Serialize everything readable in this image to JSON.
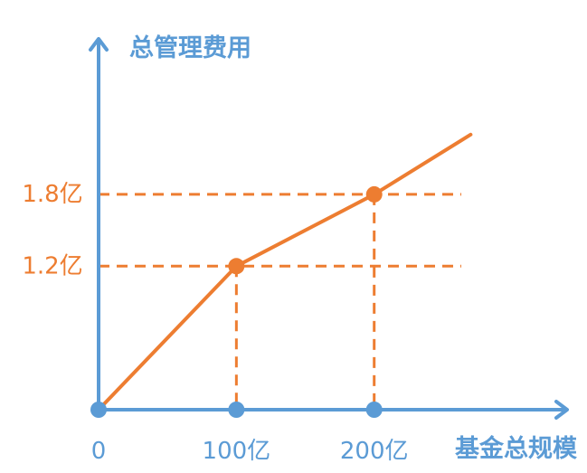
{
  "chart_data": {
    "type": "line",
    "ylabel": "总管理费用",
    "xlabel": "基金总规模",
    "x_tick_labels": [
      "0",
      "100亿",
      "200亿"
    ],
    "y_tick_labels": [
      "1.2亿",
      "1.8亿"
    ],
    "x_ticks": [
      0,
      100,
      200
    ],
    "y_ticks": [
      1.2,
      1.8
    ],
    "series": [
      {
        "x": [
          0,
          100,
          200,
          270
        ],
        "y": [
          0,
          1.2,
          1.8,
          2.3
        ]
      }
    ],
    "highlight_points": [
      {
        "x": 100,
        "y": 1.2
      },
      {
        "x": 200,
        "y": 1.8
      }
    ],
    "xlim": [
      0,
      340
    ],
    "ylim": [
      0,
      3.1
    ],
    "axis_color": "#5b9bd5",
    "line_color": "#ed7d31",
    "grid": false
  }
}
